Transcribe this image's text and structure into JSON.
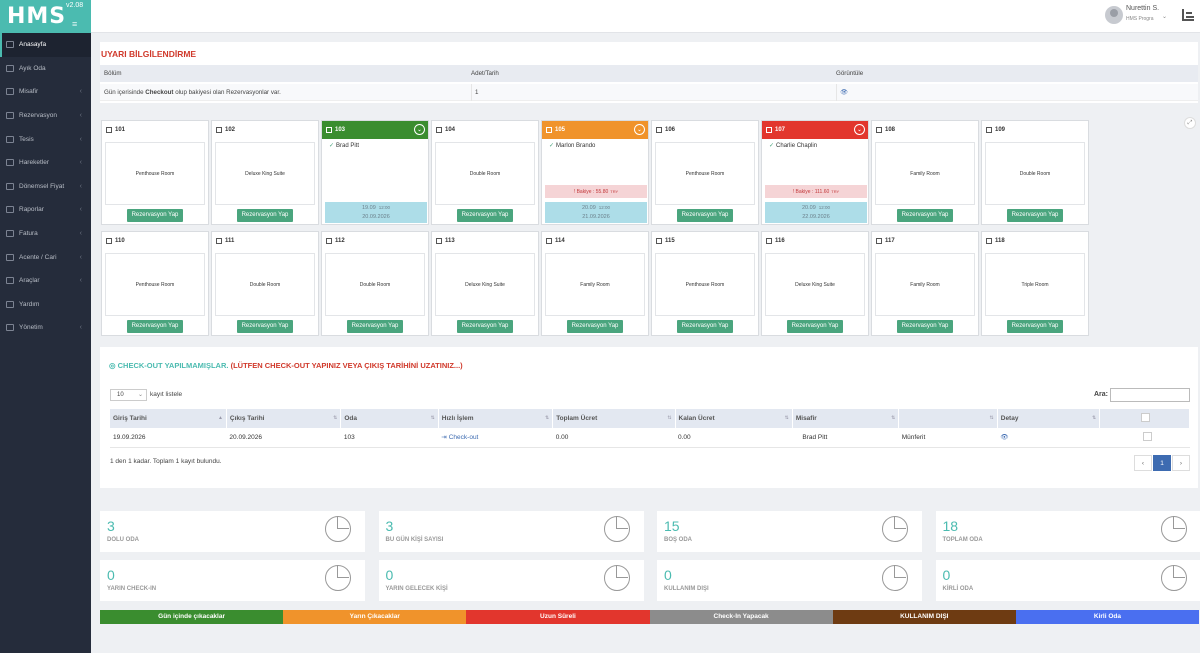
{
  "app": {
    "name": "HMS",
    "version": "v2.08"
  },
  "sidebar": {
    "items": [
      {
        "label": "Anasayfa",
        "arrow": ""
      },
      {
        "label": "Ayık Oda",
        "arrow": ""
      },
      {
        "label": "Misafir",
        "arrow": "‹"
      },
      {
        "label": "Rezervasyon",
        "arrow": "‹"
      },
      {
        "label": "Tesis",
        "arrow": "‹"
      },
      {
        "label": "Hareketler",
        "arrow": "‹"
      },
      {
        "label": "Dönemsel Fiyat",
        "arrow": "‹"
      },
      {
        "label": "Raporlar",
        "arrow": "‹"
      },
      {
        "label": "Fatura",
        "arrow": "‹"
      },
      {
        "label": "Acente / Cari",
        "arrow": "‹"
      },
      {
        "label": "Araçlar",
        "arrow": "‹"
      },
      {
        "label": "Yardım",
        "arrow": ""
      },
      {
        "label": "Yönetim",
        "arrow": "‹"
      }
    ]
  },
  "user": {
    "name": "Nurettin S.",
    "role": "HMS Progra"
  },
  "warning": {
    "title": "UYARI BİLGİLENDİRME",
    "headers": [
      "Bölüm",
      "Adet/Tarih",
      "Görüntüle"
    ],
    "row": {
      "pre": "Gün içerisinde ",
      "bold": "Checkout",
      "post": " olup bakiyesi olan Rezervasyonlar var.",
      "count": "1"
    }
  },
  "rooms": [
    {
      "no": "101",
      "type": "Penthouse Room",
      "status": "empty"
    },
    {
      "no": "102",
      "type": "Deluxe King Suite",
      "status": "empty"
    },
    {
      "no": "103",
      "status": "green",
      "guest": "Brad Pitt",
      "balance": "",
      "in_date": "19.09",
      "in_time": "12:00",
      "out_date": "20.09.2026"
    },
    {
      "no": "104",
      "type": "Double Room",
      "status": "empty"
    },
    {
      "no": "105",
      "status": "orange",
      "guest": "Marlon Brando",
      "balance": "! Bakiye : 55.80",
      "currency": "TRY",
      "in_date": "20.09",
      "in_time": "12:00",
      "out_date": "21.09.2026"
    },
    {
      "no": "106",
      "type": "Penthouse Room",
      "status": "empty"
    },
    {
      "no": "107",
      "status": "red",
      "guest": "Charlie Chaplin",
      "balance": "! Bakiye : 111.60",
      "currency": "TRY",
      "in_date": "20.09",
      "in_time": "12:00",
      "out_date": "22.09.2026"
    },
    {
      "no": "108",
      "type": "Family Room",
      "status": "empty"
    },
    {
      "no": "109",
      "type": "Double Room",
      "status": "empty"
    },
    {
      "no": "110",
      "type": "Penthouse Room",
      "status": "empty"
    },
    {
      "no": "111",
      "type": "Double Room",
      "status": "empty"
    },
    {
      "no": "112",
      "type": "Double Room",
      "status": "empty"
    },
    {
      "no": "113",
      "type": "Deluxe King Suite",
      "status": "empty"
    },
    {
      "no": "114",
      "type": "Family Room",
      "status": "empty"
    },
    {
      "no": "115",
      "type": "Penthouse Room",
      "status": "empty"
    },
    {
      "no": "116",
      "type": "Deluxe King Suite",
      "status": "empty"
    },
    {
      "no": "117",
      "type": "Family Room",
      "status": "empty"
    },
    {
      "no": "118",
      "type": "Triple Room",
      "status": "empty"
    }
  ],
  "reserve_label": "Rezervasyon Yap",
  "checkout": {
    "title": "CHECK-OUT YAPILMAMIŞLAR.",
    "warning": "(LÜTFEN CHECK-OUT YAPINIZ VEYA ÇIKIŞ TARİHİNİ UZATINIZ...)",
    "length": "10",
    "length_label": "kayıt listele",
    "search_label": "Ara:",
    "columns": [
      "Giriş Tarihi",
      "Çıkış Tarihi",
      "Oda",
      "Hızlı İşlem",
      "Toplam Ücret",
      "Kalan Ücret",
      "Misafir",
      "",
      "Detay",
      ""
    ],
    "rows": [
      [
        "19.09.2026",
        "20.09.2026",
        "103",
        "Check-out",
        "0.00",
        "0.00",
        "Brad Pitt",
        "Münferit"
      ]
    ],
    "info": "1 den 1 kadar. Toplam 1 kayıt bulundu.",
    "pages": [
      "‹",
      "1",
      "›"
    ]
  },
  "stats": [
    {
      "value": "3",
      "label": "DOLU ODA"
    },
    {
      "value": "3",
      "label": "BU GÜN KİŞİ SAYISI"
    },
    {
      "value": "15",
      "label": "BOŞ ODA"
    },
    {
      "value": "18",
      "label": "TOPLAM ODA"
    },
    {
      "value": "0",
      "label": "YARIN CHECK-IN"
    },
    {
      "value": "0",
      "label": "YARIN GELECEK KİŞİ"
    },
    {
      "value": "0",
      "label": "KULLANIM DIŞI"
    },
    {
      "value": "0",
      "label": "KİRLİ ODA"
    }
  ],
  "legend": [
    {
      "label": "Gün içinde çıkacaklar",
      "color": "#3a8d2f"
    },
    {
      "label": "Yarın Çıkacaklar",
      "color": "#f0932b"
    },
    {
      "label": "Uzun Süreli",
      "color": "#e2362d"
    },
    {
      "label": "Check-In Yapacak",
      "color": "#8c8c8c"
    },
    {
      "label": "KULLANIM DIŞI",
      "color": "#6e3b12"
    },
    {
      "label": "Kirli Oda",
      "color": "#4a6ff0"
    }
  ],
  "colors": {
    "accent": "#4bbbb0",
    "green": "#3a8d2f",
    "orange": "#f0932b",
    "red": "#e2362d",
    "button": "#4aa57e"
  }
}
